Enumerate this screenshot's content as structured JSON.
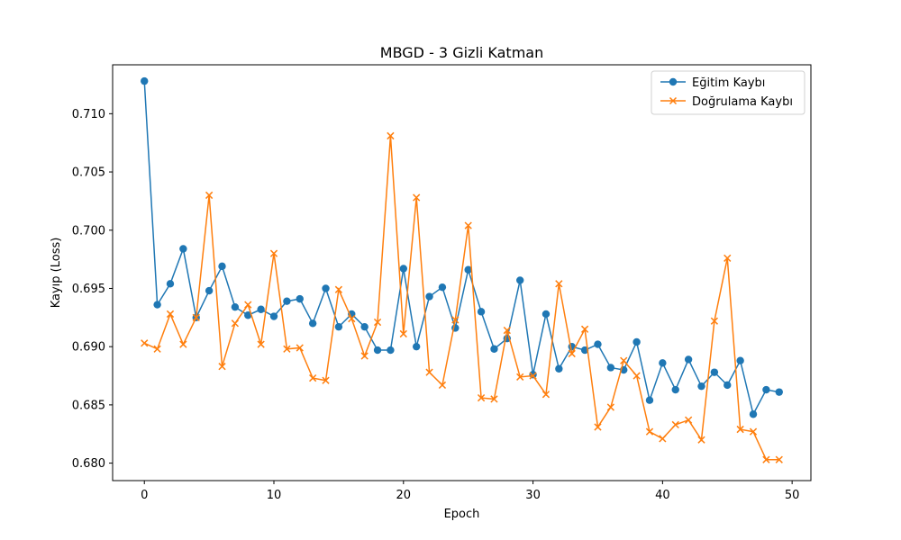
{
  "chart_data": {
    "type": "line",
    "title": "MBGD - 3 Gizli Katman",
    "xlabel": "Epoch",
    "ylabel": "Kayıp (Loss)",
    "xlim": [
      -2.45,
      51.45
    ],
    "ylim": [
      0.6785,
      0.7142
    ],
    "xticks": [
      0,
      10,
      20,
      30,
      40,
      50
    ],
    "yticks": [
      0.68,
      0.685,
      0.69,
      0.695,
      0.7,
      0.705,
      0.71
    ],
    "grid": false,
    "legend_position": "top-right",
    "x": [
      0,
      1,
      2,
      3,
      4,
      5,
      6,
      7,
      8,
      9,
      10,
      11,
      12,
      13,
      14,
      15,
      16,
      17,
      18,
      19,
      20,
      21,
      22,
      23,
      24,
      25,
      26,
      27,
      28,
      29,
      30,
      31,
      32,
      33,
      34,
      35,
      36,
      37,
      38,
      39,
      40,
      41,
      42,
      43,
      44,
      45,
      46,
      47,
      48,
      49
    ],
    "series": [
      {
        "name": "Eğitim Kaybı",
        "color": "#1f77b4",
        "marker": "circle",
        "values": [
          0.7128,
          0.6936,
          0.6954,
          0.6984,
          0.6925,
          0.6948,
          0.6969,
          0.6934,
          0.6927,
          0.6932,
          0.6926,
          0.6939,
          0.6941,
          0.692,
          0.695,
          0.6917,
          0.6928,
          0.6917,
          0.6897,
          0.6897,
          0.6967,
          0.69,
          0.6943,
          0.6951,
          0.6916,
          0.6966,
          0.693,
          0.6898,
          0.6907,
          0.6957,
          0.6876,
          0.6928,
          0.6881,
          0.69,
          0.6897,
          0.6902,
          0.6882,
          0.688,
          0.6904,
          0.6854,
          0.6886,
          0.6863,
          0.6889,
          0.6866,
          0.6878,
          0.6867,
          0.6888,
          0.6842,
          0.6863,
          0.6861
        ]
      },
      {
        "name": "Doğrulama Kaybı",
        "color": "#ff7f0e",
        "marker": "x",
        "values": [
          0.6903,
          0.6898,
          0.6928,
          0.6902,
          0.6925,
          0.703,
          0.6883,
          0.692,
          0.6936,
          0.6902,
          0.698,
          0.6898,
          0.6899,
          0.6873,
          0.6871,
          0.6949,
          0.6924,
          0.6892,
          0.6921,
          0.7081,
          0.6911,
          0.7028,
          0.6878,
          0.6867,
          0.6923,
          0.7004,
          0.6856,
          0.6855,
          0.6914,
          0.6874,
          0.6875,
          0.6859,
          0.6954,
          0.6894,
          0.6915,
          0.6831,
          0.6848,
          0.6888,
          0.6875,
          0.6827,
          0.6821,
          0.6833,
          0.6837,
          0.682,
          0.6922,
          0.6976,
          0.6829,
          0.6827,
          0.6803,
          0.6803
        ]
      }
    ]
  }
}
